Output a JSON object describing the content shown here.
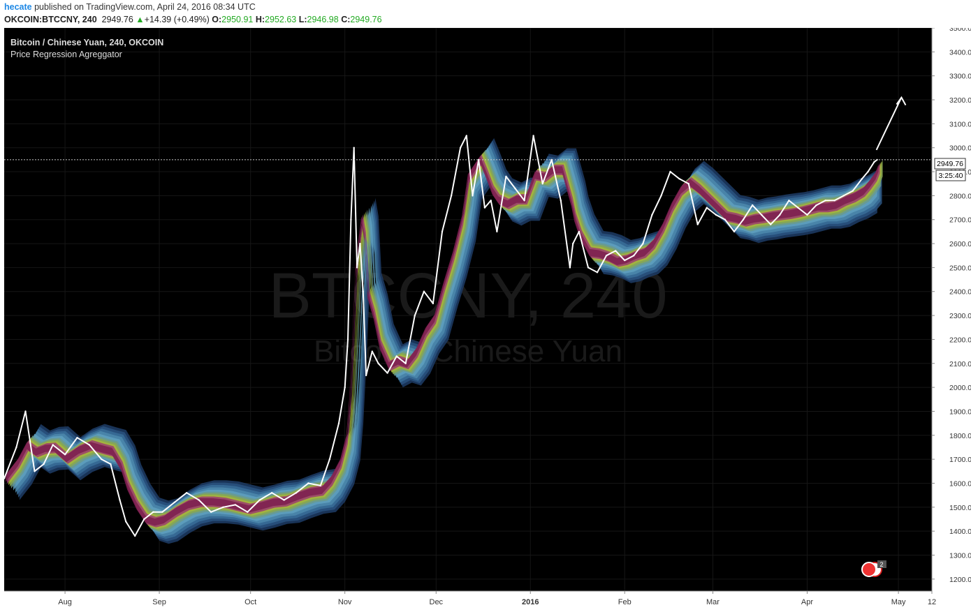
{
  "header": {
    "author": "hecate",
    "published_text": "published on TradingView.com, April 24, 2016 08:34 UTC",
    "symbol": "OKCOIN:BTCCNY, 240",
    "last": "2949.76",
    "change_arrow": "▲",
    "change": "+14.39 (+0.49%)",
    "o_label": "O:",
    "o_value": "2950.91",
    "h_label": "H:",
    "h_value": "2952.63",
    "l_label": "L:",
    "l_value": "2946.98",
    "c_label": "C:",
    "c_value": "2949.76"
  },
  "legend": {
    "line1": "Bitcoin / Chinese Yuan, 240, OKCOIN",
    "line2": "Price Regression Agreggator"
  },
  "watermark": {
    "big": "BTCCNY, 240",
    "small": "Bitcoin / Chinese Yuan"
  },
  "price_tag": {
    "price": "2949.76",
    "countdown": "3:25:40"
  },
  "event_badge": {
    "count": "2"
  },
  "colors": {
    "background": "#000000",
    "price_line": "#ffffff",
    "band_layers": [
      "#1d3c66",
      "#2a5480",
      "#3a6f99",
      "#4c89ad",
      "#5fa0be",
      "#6b9b8a",
      "#8aa84e",
      "#a8b63a",
      "#9b3c6e",
      "#7d1f4f"
    ]
  },
  "chart_data": {
    "type": "line",
    "title": "Bitcoin / Chinese Yuan, 240, OKCOIN",
    "subtitle": "Price Regression Agreggator",
    "xlabel": "",
    "ylabel": "",
    "ylim": [
      1150,
      3500
    ],
    "y_ticks": [
      "1200.00",
      "1300.00",
      "1400.00",
      "1500.00",
      "1600.00",
      "1700.00",
      "1800.00",
      "1900.00",
      "2000.00",
      "2100.00",
      "2200.00",
      "2300.00",
      "2400.00",
      "2500.00",
      "2600.00",
      "2700.00",
      "2800.00",
      "2900.00",
      "3000.00",
      "3100.00",
      "3200.00",
      "3300.00",
      "3400.00",
      "3500.00"
    ],
    "x_ticks": [
      {
        "label": "Aug",
        "date": "2015-08-01"
      },
      {
        "label": "Sep",
        "date": "2015-09-01"
      },
      {
        "label": "Oct",
        "date": "2015-10-01"
      },
      {
        "label": "Nov",
        "date": "2015-11-01"
      },
      {
        "label": "Dec",
        "date": "2015-12-01"
      },
      {
        "label": "2016",
        "date": "2016-01-01",
        "bold": true
      },
      {
        "label": "Feb",
        "date": "2016-02-01"
      },
      {
        "label": "Mar",
        "date": "2016-03-01"
      },
      {
        "label": "Apr",
        "date": "2016-04-01"
      },
      {
        "label": "May",
        "date": "2016-05-01"
      },
      {
        "label": "12",
        "date": "2016-05-12"
      }
    ],
    "x_range": [
      "2015-07-12",
      "2016-05-12"
    ],
    "grid": true,
    "series": [
      {
        "x": [
          "2015-07-12",
          "2015-07-16",
          "2015-07-19",
          "2015-07-22",
          "2015-07-25",
          "2015-07-28",
          "2015-08-01",
          "2015-08-05",
          "2015-08-09",
          "2015-08-13",
          "2015-08-16",
          "2015-08-19",
          "2015-08-21",
          "2015-08-24",
          "2015-08-27",
          "2015-08-30",
          "2015-09-02",
          "2015-09-06",
          "2015-09-10",
          "2015-09-14",
          "2015-09-18",
          "2015-09-22",
          "2015-09-26",
          "2015-09-30",
          "2015-10-04",
          "2015-10-08",
          "2015-10-12",
          "2015-10-16",
          "2015-10-20",
          "2015-10-24",
          "2015-10-27",
          "2015-10-30",
          "2015-11-01",
          "2015-11-02",
          "2015-11-03",
          "2015-11-04",
          "2015-11-05",
          "2015-11-06",
          "2015-11-07",
          "2015-11-08",
          "2015-11-10",
          "2015-11-12",
          "2015-11-15",
          "2015-11-18",
          "2015-11-21",
          "2015-11-24",
          "2015-11-27",
          "2015-11-30",
          "2015-12-03",
          "2015-12-06",
          "2015-12-09",
          "2015-12-11",
          "2015-12-13",
          "2015-12-15",
          "2015-12-17",
          "2015-12-19",
          "2015-12-21",
          "2015-12-24",
          "2015-12-27",
          "2015-12-30",
          "2016-01-02",
          "2016-01-05",
          "2016-01-08",
          "2016-01-11",
          "2016-01-14",
          "2016-01-15",
          "2016-01-17",
          "2016-01-20",
          "2016-01-23",
          "2016-01-26",
          "2016-01-29",
          "2016-02-01",
          "2016-02-04",
          "2016-02-07",
          "2016-02-10",
          "2016-02-13",
          "2016-02-16",
          "2016-02-19",
          "2016-02-22",
          "2016-02-25",
          "2016-02-28",
          "2016-03-02",
          "2016-03-05",
          "2016-03-08",
          "2016-03-11",
          "2016-03-14",
          "2016-03-17",
          "2016-03-20",
          "2016-03-23",
          "2016-03-26",
          "2016-03-29",
          "2016-04-01",
          "2016-04-04",
          "2016-04-07",
          "2016-04-10",
          "2016-04-13",
          "2016-04-16",
          "2016-04-19",
          "2016-04-21",
          "2016-04-23",
          "2016-04-24"
        ],
        "y": [
          1620,
          1750,
          1900,
          1650,
          1680,
          1760,
          1720,
          1790,
          1760,
          1700,
          1680,
          1530,
          1440,
          1380,
          1450,
          1480,
          1480,
          1520,
          1560,
          1530,
          1480,
          1500,
          1510,
          1480,
          1530,
          1560,
          1530,
          1560,
          1600,
          1590,
          1700,
          1850,
          2000,
          2200,
          2700,
          3000,
          2500,
          2600,
          2400,
          2050,
          2150,
          2100,
          2060,
          2130,
          2100,
          2300,
          2400,
          2350,
          2650,
          2800,
          3000,
          3050,
          2800,
          2950,
          2750,
          2780,
          2650,
          2880,
          2830,
          2780,
          3050,
          2850,
          2950,
          2780,
          2500,
          2600,
          2650,
          2500,
          2480,
          2550,
          2570,
          2530,
          2550,
          2600,
          2720,
          2800,
          2900,
          2870,
          2850,
          2680,
          2750,
          2720,
          2700,
          2650,
          2700,
          2760,
          2720,
          2680,
          2720,
          2780,
          2750,
          2720,
          2760,
          2780,
          2780,
          2800,
          2820,
          2870,
          2900,
          2940,
          2950
        ],
        "up_to_x": "2016-05-02",
        "up_to_y": 3210
      }
    ]
  }
}
